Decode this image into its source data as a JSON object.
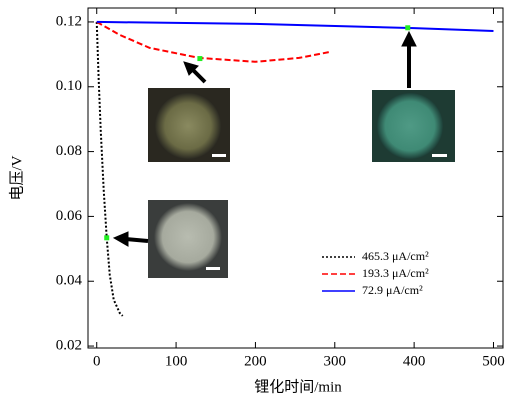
{
  "chart_data": {
    "type": "line",
    "xlabel": "锂化时间/min",
    "ylabel": "电压/V",
    "xlim": [
      -11,
      512
    ],
    "ylim": [
      0.0194,
      0.1243
    ],
    "xticks": [
      0,
      100,
      200,
      300,
      400,
      500
    ],
    "yticks": [
      0.02,
      0.04,
      0.06,
      0.08,
      {
        "value": 0.1,
        "label": "0.10"
      },
      0.12
    ],
    "legend": "lower-right",
    "series": [
      {
        "name": "465.3 μA/cm²",
        "color": "#000000",
        "dash": "dotted",
        "x": [
          0,
          2.5,
          5,
          8.8,
          12.6,
          16.4,
          21.4,
          29,
          32.7
        ],
        "values": [
          0.12,
          0.102,
          0.0867,
          0.0681,
          0.0534,
          0.042,
          0.0343,
          0.0302,
          0.0293
        ],
        "marker": {
          "x": 12.6,
          "y": 0.0534
        }
      },
      {
        "name": "193.3 μA/cm²",
        "color": "#ff0000",
        "dash": "dashed",
        "x": [
          0,
          29,
          66.7,
          129,
          200,
          255,
          293
        ],
        "values": [
          0.12,
          0.116,
          0.112,
          0.1089,
          0.1077,
          0.1089,
          0.1107
        ],
        "marker": {
          "x": 130,
          "y": 0.1087
        }
      },
      {
        "name": "72.9 μA/cm²",
        "color": "#0000ff",
        "dash": "solid",
        "x": [
          0,
          200,
          400,
          500
        ],
        "values": [
          0.12,
          0.1194,
          0.1181,
          0.1172
        ],
        "marker": {
          "x": 392,
          "y": 0.1182
        }
      }
    ]
  }
}
